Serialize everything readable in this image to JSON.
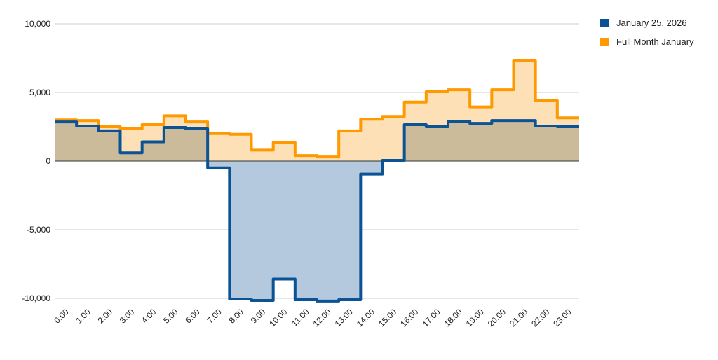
{
  "chart_data": {
    "type": "area",
    "step": true,
    "categories": [
      "0:00",
      "1:00",
      "2:00",
      "3:00",
      "4:00",
      "5:00",
      "6:00",
      "7:00",
      "8:00",
      "9:00",
      "10:00",
      "11:00",
      "12:00",
      "13:00",
      "14:00",
      "15:00",
      "16:00",
      "17:00",
      "18:00",
      "19:00",
      "20:00",
      "21:00",
      "22:00",
      "23:00"
    ],
    "series": [
      {
        "name": "January 25, 2026",
        "color": "#0b5394",
        "fill": "#b5c9de",
        "values": [
          2850,
          2550,
          2200,
          600,
          1400,
          2450,
          2350,
          -500,
          -10050,
          -10150,
          -8600,
          -10100,
          -10200,
          -10100,
          -950,
          50,
          2650,
          2500,
          2900,
          2750,
          2950,
          2950,
          2550,
          2500
        ]
      },
      {
        "name": "Full Month January",
        "color": "#ff9900",
        "fill": "#fde0b5",
        "values": [
          3000,
          2950,
          2500,
          2350,
          2650,
          3300,
          2850,
          2000,
          1950,
          800,
          1350,
          400,
          300,
          2200,
          3050,
          3250,
          4300,
          5050,
          5200,
          3950,
          5200,
          7350,
          4400,
          3150
        ]
      }
    ],
    "y_ticks": [
      "10,000",
      "5,000",
      "0",
      "-5,000",
      "-10,000"
    ],
    "ylim": [
      -10500,
      10000
    ],
    "grid": true,
    "legend_position": "right",
    "overlap_fill": "#cbbb9b",
    "title": "",
    "xlabel": "",
    "ylabel": ""
  }
}
